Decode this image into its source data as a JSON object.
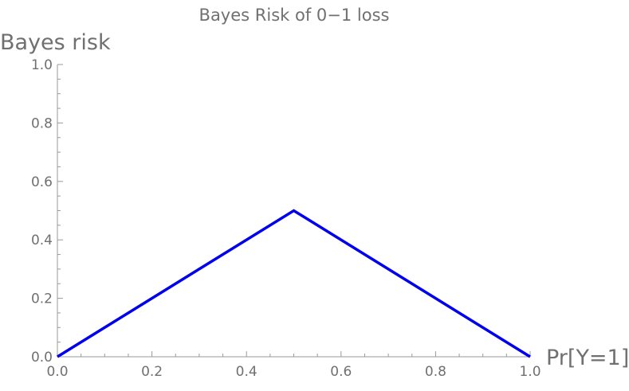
{
  "chart_data": {
    "type": "line",
    "title": "Bayes Risk of 0−1 loss",
    "xlabel": "Pr[Y=1]",
    "ylabel": "Bayes risk",
    "xlim": [
      0,
      1
    ],
    "ylim": [
      0,
      1
    ],
    "x_ticks": [
      "0.0",
      "0.2",
      "0.4",
      "0.6",
      "0.8",
      "1.0"
    ],
    "y_ticks": [
      "0.0",
      "0.2",
      "0.4",
      "0.6",
      "0.8",
      "1.0"
    ],
    "x": [
      0,
      0.5,
      1
    ],
    "series": [
      {
        "values": [
          0,
          0.5,
          0
        ],
        "color": "#0000ee"
      }
    ],
    "grid": false,
    "legend": "none",
    "axis_color": "#9a9a9a",
    "text_color": "#707070"
  }
}
